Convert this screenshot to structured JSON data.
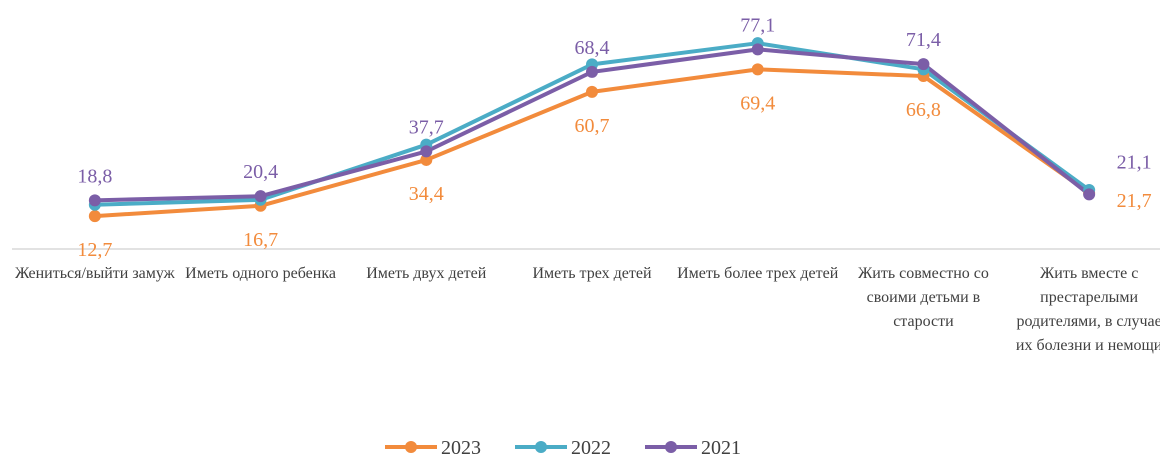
{
  "chart_data": {
    "type": "line",
    "categories": [
      "Жениться/выйти замуж",
      "Иметь одного ребенка",
      "Иметь двух детей",
      "Иметь трех детей",
      "Иметь более трех детей",
      "Жить совместно со своими детьми в старости",
      "Жить вместе с престарелыми родителями, в случае их болезни и немощи"
    ],
    "series": [
      {
        "name": "2023",
        "color": "#f28b3c",
        "values": [
          12.7,
          16.7,
          34.4,
          60.7,
          69.4,
          66.8,
          21.7
        ],
        "value_labels": [
          "12,7",
          "16,7",
          "34,4",
          "60,7",
          "69,4",
          "66,8",
          "21,7"
        ]
      },
      {
        "name": "2022",
        "color": "#4bacc6",
        "values": [
          17.1,
          19.0,
          40.3,
          71.3,
          79.5,
          69.4,
          22.8
        ]
      },
      {
        "name": "2021",
        "color": "#7b5ea7",
        "values": [
          18.8,
          20.4,
          37.7,
          68.4,
          77.1,
          71.4,
          21.1
        ],
        "value_labels": [
          "18,8",
          "20,4",
          "37,7",
          "68,4",
          "77,1",
          "71,4",
          "21,1"
        ]
      }
    ],
    "ylim": [
      0,
      90
    ],
    "legend": "bottom"
  }
}
